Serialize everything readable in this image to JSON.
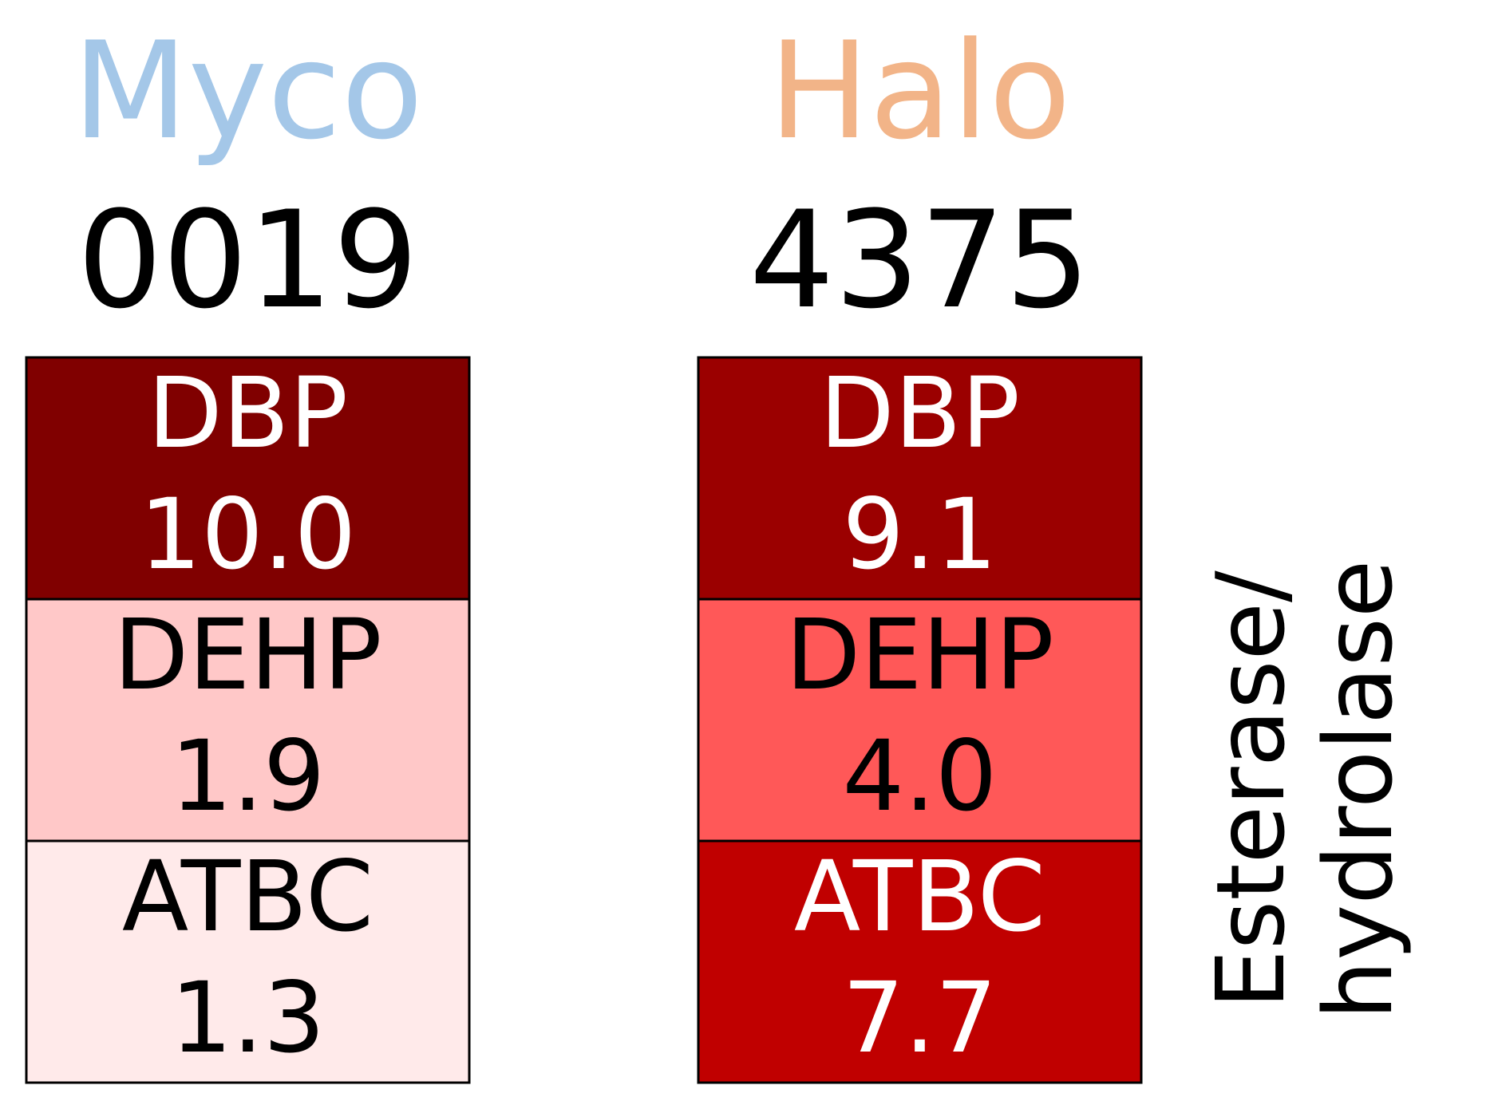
{
  "chart_data": {
    "type": "heatmap",
    "side_label_lines": [
      "Esterase/",
      "hydrolase"
    ],
    "columns": [
      {
        "name": "Myco",
        "code": "0019",
        "name_color": "#a4c7e8",
        "cells": [
          {
            "label": "DBP",
            "value": 10.0,
            "display": "10.0",
            "fill": "#800000",
            "text_color": "#ffffff"
          },
          {
            "label": "DEHP",
            "value": 1.9,
            "display": "1.9",
            "fill": "#ffc8c8",
            "text_color": "#000000"
          },
          {
            "label": "ATBC",
            "value": 1.3,
            "display": "1.3",
            "fill": "#ffeaea",
            "text_color": "#000000"
          }
        ]
      },
      {
        "name": "Halo",
        "code": "4375",
        "name_color": "#f2b488",
        "cells": [
          {
            "label": "DBP",
            "value": 9.1,
            "display": "9.1",
            "fill": "#9b0000",
            "text_color": "#ffffff"
          },
          {
            "label": "DEHP",
            "value": 4.0,
            "display": "4.0",
            "fill": "#ff5858",
            "text_color": "#000000"
          },
          {
            "label": "ATBC",
            "value": 7.7,
            "display": "7.7",
            "fill": "#c00000",
            "text_color": "#ffffff"
          }
        ]
      }
    ]
  }
}
